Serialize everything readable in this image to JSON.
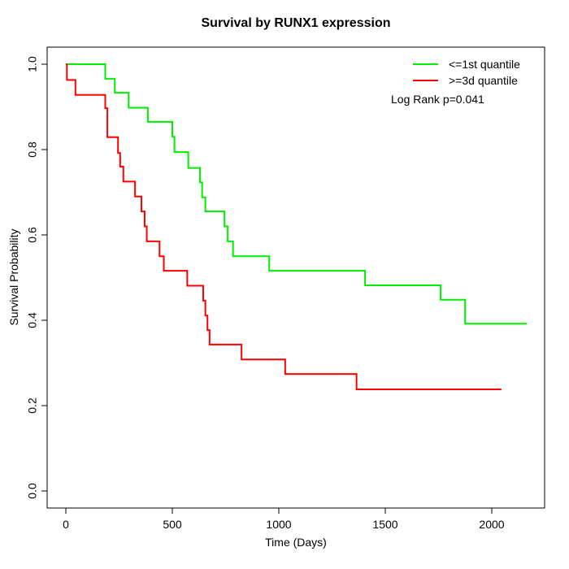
{
  "chart_data": {
    "type": "line",
    "subtype": "kaplan-meier-step",
    "title": "Survival by RUNX1 expression",
    "xlabel": "Time (Days)",
    "ylabel": "Survival Probability",
    "xlim": [
      0,
      2200
    ],
    "ylim": [
      0.0,
      1.0
    ],
    "x_ticks": [
      0,
      500,
      1000,
      1500,
      2000
    ],
    "y_ticks": [
      "0.0",
      "0.2",
      "0.4",
      "0.6",
      "0.8",
      "1.0"
    ],
    "grid": false,
    "legend": {
      "position": "top-right",
      "entries": [
        {
          "label": "<=1st quantile",
          "color": "#00ee00"
        },
        {
          "label": ">=3d quantile",
          "color": "#ff0000"
        }
      ]
    },
    "annotation": "Log Rank p=0.041",
    "series": [
      {
        "name": "<=1st quantile",
        "color": "#00ee00",
        "points": [
          [
            0,
            1.0
          ],
          [
            185,
            0.966
          ],
          [
            230,
            0.933
          ],
          [
            295,
            0.898
          ],
          [
            385,
            0.865
          ],
          [
            500,
            0.83
          ],
          [
            510,
            0.794
          ],
          [
            575,
            0.757
          ],
          [
            630,
            0.723
          ],
          [
            640,
            0.688
          ],
          [
            655,
            0.655
          ],
          [
            745,
            0.62
          ],
          [
            760,
            0.585
          ],
          [
            785,
            0.55
          ],
          [
            955,
            0.516
          ],
          [
            1405,
            0.482
          ],
          [
            1760,
            0.448
          ],
          [
            1875,
            0.392
          ]
        ],
        "end_day": 2165
      },
      {
        "name": ">=3d quantile",
        "color": "#ff0000",
        "points": [
          [
            0,
            1.0
          ],
          [
            5,
            0.963
          ],
          [
            45,
            0.928
          ],
          [
            185,
            0.897
          ],
          [
            195,
            0.829
          ],
          [
            245,
            0.792
          ],
          [
            255,
            0.76
          ],
          [
            270,
            0.725
          ],
          [
            325,
            0.69
          ],
          [
            355,
            0.655
          ],
          [
            370,
            0.62
          ],
          [
            380,
            0.585
          ],
          [
            440,
            0.55
          ],
          [
            460,
            0.516
          ],
          [
            570,
            0.481
          ],
          [
            645,
            0.446
          ],
          [
            655,
            0.411
          ],
          [
            665,
            0.377
          ],
          [
            675,
            0.343
          ],
          [
            825,
            0.308
          ],
          [
            1030,
            0.274
          ],
          [
            1365,
            0.238
          ]
        ],
        "end_day": 2045
      }
    ]
  }
}
